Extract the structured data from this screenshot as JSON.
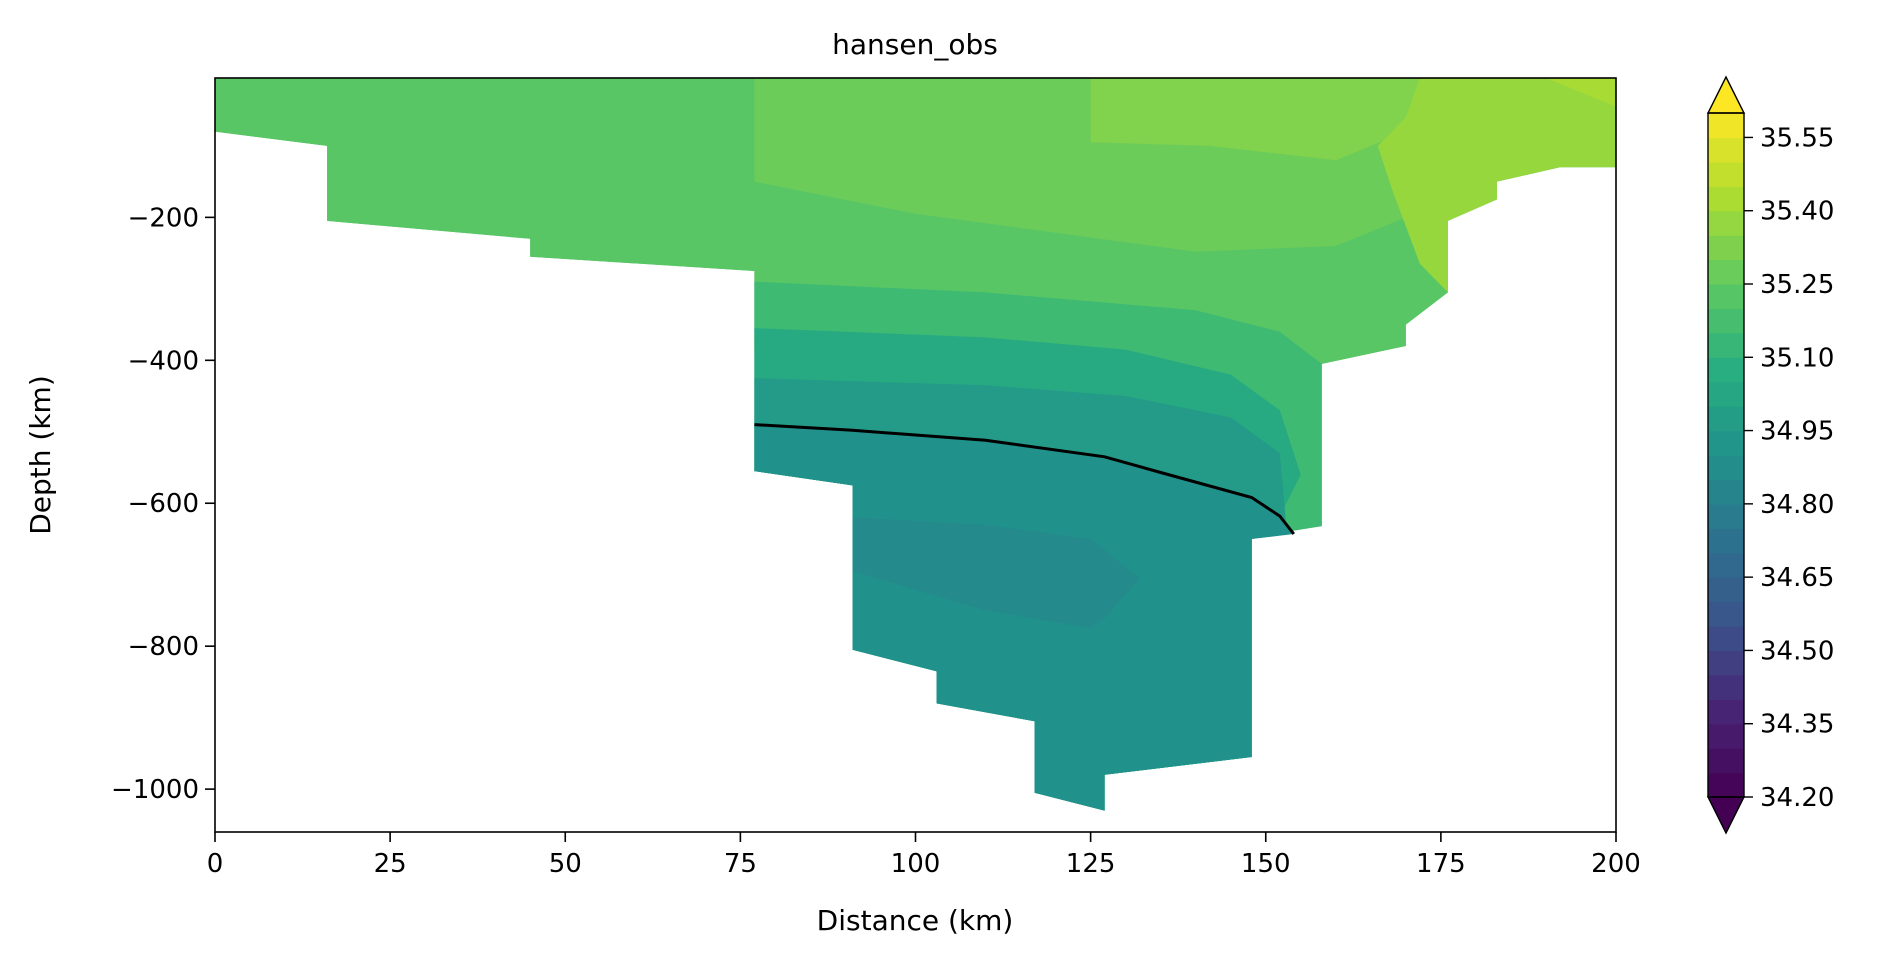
{
  "chart_data": {
    "type": "contourf",
    "title": "hansen_obs",
    "xlabel": "Distance (km)",
    "ylabel": "Depth (km)",
    "xlim": [
      0,
      200
    ],
    "ylim": [
      -1060,
      -5
    ],
    "x_ticks": [
      0,
      25,
      50,
      75,
      100,
      125,
      150,
      175,
      200
    ],
    "x_tick_labels": [
      "0",
      "25",
      "50",
      "75",
      "100",
      "125",
      "150",
      "175",
      "200"
    ],
    "y_ticks": [
      -200,
      -400,
      -600,
      -800,
      -1000
    ],
    "y_tick_labels": [
      "−200",
      "−400",
      "−600",
      "−800",
      "−1000"
    ],
    "colormap": "viridis",
    "colorbar": {
      "min": 34.2,
      "max": 35.6,
      "levels": 28,
      "extend": "both",
      "ticks": [
        34.2,
        34.35,
        34.5,
        34.65,
        34.8,
        34.95,
        35.1,
        35.25,
        35.4,
        35.55
      ],
      "tick_labels": [
        "34.20",
        "34.35",
        "34.50",
        "34.65",
        "34.80",
        "34.95",
        "35.10",
        "35.25",
        "35.40",
        "35.55"
      ]
    },
    "bottom_profile": [
      [
        0,
        -80
      ],
      [
        16,
        -100
      ],
      [
        16,
        -205
      ],
      [
        45,
        -230
      ],
      [
        45,
        -255
      ],
      [
        77,
        -275
      ],
      [
        77,
        -555
      ],
      [
        91,
        -575
      ],
      [
        91,
        -805
      ],
      [
        103,
        -835
      ],
      [
        103,
        -880
      ],
      [
        117,
        -905
      ],
      [
        117,
        -1005
      ],
      [
        127,
        -1030
      ],
      [
        127,
        -980
      ],
      [
        148,
        -955
      ],
      [
        148,
        -650
      ],
      [
        153,
        -640
      ],
      [
        158,
        -632
      ],
      [
        158,
        -405
      ],
      [
        170,
        -380
      ],
      [
        170,
        -350
      ],
      [
        176,
        -305
      ],
      [
        176,
        -205
      ],
      [
        183,
        -175
      ],
      [
        183,
        -150
      ],
      [
        192,
        -130
      ],
      [
        200,
        -130
      ]
    ],
    "contour_line": {
      "color": "#000000",
      "points": [
        [
          77,
          -490
        ],
        [
          91,
          -498
        ],
        [
          110,
          -512
        ],
        [
          127,
          -535
        ],
        [
          135,
          -557
        ],
        [
          148,
          -592
        ],
        [
          152,
          -618
        ],
        [
          154,
          -643
        ]
      ]
    },
    "zones": [
      {
        "value": 35.23,
        "polygon": [
          [
            0,
            -5
          ],
          [
            200,
            -5
          ],
          [
            200,
            -40
          ],
          [
            190,
            -80
          ],
          [
            180,
            -140
          ],
          [
            175,
            -215
          ],
          [
            172,
            -265
          ],
          [
            176,
            -305
          ],
          [
            170,
            -350
          ],
          [
            170,
            -380
          ],
          [
            158,
            -405
          ],
          [
            110,
            -385
          ],
          [
            77,
            -385
          ],
          [
            77,
            -275
          ],
          [
            45,
            -255
          ],
          [
            45,
            -230
          ],
          [
            16,
            -205
          ],
          [
            16,
            -100
          ],
          [
            0,
            -80
          ]
        ]
      },
      {
        "value": 35.28,
        "polygon": [
          [
            77,
            -5
          ],
          [
            200,
            -5
          ],
          [
            200,
            -40
          ],
          [
            187,
            -65
          ],
          [
            178,
            -135
          ],
          [
            170,
            -200
          ],
          [
            160,
            -240
          ],
          [
            140,
            -248
          ],
          [
            100,
            -195
          ],
          [
            77,
            -150
          ]
        ]
      },
      {
        "value": 35.33,
        "polygon": [
          [
            125,
            -5
          ],
          [
            200,
            -5
          ],
          [
            200,
            -40
          ],
          [
            182,
            -40
          ],
          [
            170,
            -80
          ],
          [
            160,
            -120
          ],
          [
            142,
            -100
          ],
          [
            125,
            -95
          ]
        ]
      },
      {
        "value": 35.38,
        "polygon": [
          [
            172,
            -5
          ],
          [
            200,
            -5
          ],
          [
            200,
            -130
          ],
          [
            192,
            -130
          ],
          [
            183,
            -150
          ],
          [
            183,
            -175
          ],
          [
            176,
            -205
          ],
          [
            176,
            -305
          ],
          [
            172,
            -265
          ],
          [
            168,
            -160
          ],
          [
            166,
            -100
          ],
          [
            170,
            -60
          ]
        ]
      },
      {
        "value": 35.42,
        "polygon": [
          [
            190,
            -5
          ],
          [
            200,
            -5
          ],
          [
            200,
            -45
          ]
        ]
      },
      {
        "value": 35.15,
        "polygon": [
          [
            77,
            -290
          ],
          [
            110,
            -305
          ],
          [
            140,
            -330
          ],
          [
            152,
            -360
          ],
          [
            158,
            -405
          ],
          [
            158,
            -632
          ],
          [
            153,
            -640
          ],
          [
            148,
            -650
          ],
          [
            148,
            -955
          ],
          [
            127,
            -980
          ],
          [
            127,
            -1030
          ],
          [
            117,
            -1005
          ],
          [
            117,
            -905
          ],
          [
            103,
            -880
          ],
          [
            103,
            -835
          ],
          [
            91,
            -805
          ],
          [
            91,
            -575
          ],
          [
            77,
            -555
          ]
        ]
      },
      {
        "value": 35.05,
        "polygon": [
          [
            77,
            -355
          ],
          [
            110,
            -368
          ],
          [
            130,
            -385
          ],
          [
            145,
            -420
          ],
          [
            152,
            -470
          ],
          [
            155,
            -560
          ],
          [
            152,
            -618
          ],
          [
            148,
            -650
          ],
          [
            148,
            -955
          ],
          [
            127,
            -980
          ],
          [
            127,
            -1030
          ],
          [
            117,
            -1005
          ],
          [
            117,
            -905
          ],
          [
            103,
            -880
          ],
          [
            103,
            -835
          ],
          [
            91,
            -805
          ],
          [
            91,
            -575
          ],
          [
            77,
            -555
          ]
        ]
      },
      {
        "value": 34.96,
        "polygon": [
          [
            77,
            -425
          ],
          [
            110,
            -435
          ],
          [
            130,
            -450
          ],
          [
            145,
            -480
          ],
          [
            152,
            -530
          ],
          [
            153,
            -640
          ],
          [
            148,
            -650
          ],
          [
            148,
            -955
          ],
          [
            127,
            -980
          ],
          [
            127,
            -1030
          ],
          [
            117,
            -1005
          ],
          [
            117,
            -905
          ],
          [
            103,
            -880
          ],
          [
            103,
            -835
          ],
          [
            91,
            -805
          ],
          [
            91,
            -575
          ],
          [
            77,
            -555
          ]
        ]
      },
      {
        "value": 34.9,
        "polygon": [
          [
            77,
            -490
          ],
          [
            91,
            -498
          ],
          [
            110,
            -512
          ],
          [
            127,
            -535
          ],
          [
            135,
            -557
          ],
          [
            148,
            -592
          ],
          [
            152,
            -618
          ],
          [
            154,
            -643
          ],
          [
            148,
            -650
          ],
          [
            148,
            -955
          ],
          [
            127,
            -980
          ],
          [
            127,
            -1030
          ],
          [
            117,
            -1005
          ],
          [
            117,
            -905
          ],
          [
            103,
            -880
          ],
          [
            103,
            -835
          ],
          [
            91,
            -805
          ],
          [
            91,
            -575
          ],
          [
            77,
            -555
          ]
        ]
      },
      {
        "value": 34.86,
        "polygon": [
          [
            91,
            -620
          ],
          [
            110,
            -630
          ],
          [
            125,
            -650
          ],
          [
            132,
            -705
          ],
          [
            127,
            -760
          ],
          [
            125,
            -775
          ],
          [
            110,
            -750
          ],
          [
            91,
            -695
          ]
        ]
      }
    ]
  }
}
